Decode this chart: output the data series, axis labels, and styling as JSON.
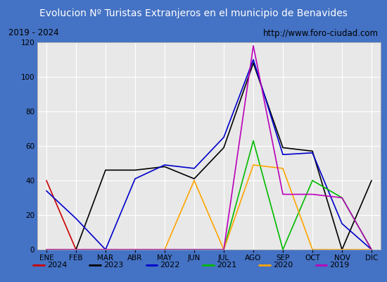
{
  "title": "Evolucion Nº Turistas Extranjeros en el municipio de Benavides",
  "subtitle_left": "2019 - 2024",
  "subtitle_right": "http://www.foro-ciudad.com",
  "months": [
    "ENE",
    "FEB",
    "MAR",
    "ABR",
    "MAY",
    "JUN",
    "JUL",
    "AGO",
    "SEP",
    "OCT",
    "NOV",
    "DIC"
  ],
  "series": {
    "2024": {
      "color": "#cc0000",
      "values": [
        40,
        0,
        null,
        null,
        null,
        null,
        null,
        null,
        null,
        null,
        null,
        null
      ]
    },
    "2023": {
      "color": "#000000",
      "values": [
        0,
        0,
        46,
        46,
        48,
        41,
        59,
        108,
        59,
        57,
        0,
        40
      ]
    },
    "2022": {
      "color": "#0000cc",
      "values": [
        34,
        18,
        0,
        41,
        49,
        47,
        65,
        110,
        55,
        56,
        15,
        0
      ]
    },
    "2021": {
      "color": "#00bb00",
      "values": [
        0,
        0,
        0,
        0,
        0,
        0,
        0,
        63,
        0,
        40,
        30,
        0
      ]
    },
    "2020": {
      "color": "#ffa500",
      "values": [
        0,
        0,
        0,
        0,
        0,
        40,
        0,
        49,
        47,
        0,
        0,
        0
      ]
    },
    "2019": {
      "color": "#bb00bb",
      "values": [
        0,
        0,
        0,
        0,
        0,
        0,
        0,
        118,
        32,
        32,
        30,
        0
      ]
    }
  },
  "ylim": [
    0,
    120
  ],
  "yticks": [
    0,
    20,
    40,
    60,
    80,
    100,
    120
  ],
  "title_bg_color": "#4472c4",
  "title_text_color": "#ffffff",
  "plot_bg_color": "#e8e8e8",
  "grid_color": "#ffffff",
  "outer_bg_color": "#4472c4",
  "inner_bg_color": "#ffffff",
  "legend_order": [
    "2024",
    "2023",
    "2022",
    "2021",
    "2020",
    "2019"
  ]
}
